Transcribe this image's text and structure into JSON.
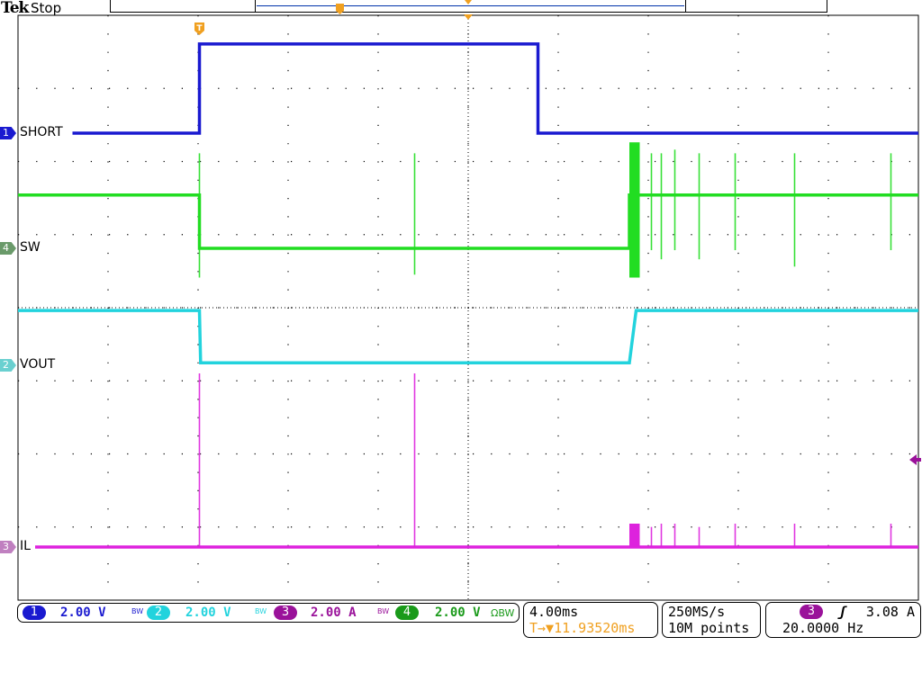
{
  "header": {
    "brand": "Tek",
    "status": "Stop"
  },
  "channels": [
    {
      "num": "1",
      "label": "SHORT",
      "scale": "2.00 V",
      "color": "#1a1ad0",
      "bw": "BW"
    },
    {
      "num": "2",
      "label": "VOUT",
      "scale": "2.00 V",
      "color": "#22d3dd",
      "bw": "BW"
    },
    {
      "num": "3",
      "label": "IL",
      "scale": "2.00 A",
      "color": "#9a129a",
      "bw": "BW"
    },
    {
      "num": "4",
      "label": "SW",
      "scale": "2.00 V",
      "color": "#1a9a1a",
      "bw": "ΩBW"
    }
  ],
  "horizontal": {
    "scale": "4.00ms",
    "position": "11.93520ms",
    "position_prefix": "T→▼",
    "color": "#f0a020"
  },
  "acquisition": {
    "rate": "250MS/s",
    "length": "10M points"
  },
  "trigger": {
    "source": "3",
    "slope": "rising",
    "slope_glyph": "ʃ",
    "level": "3.08 A",
    "frequency": "20.0000 Hz"
  },
  "trigger_marker": "T",
  "chart_data": {
    "type": "line",
    "xlabel": "",
    "ylabel": "",
    "x_unit": "ms",
    "xlim": [
      -8.06,
      31.94
    ],
    "grid": true,
    "divisions": {
      "horizontal": 10,
      "vertical": 8
    },
    "series": [
      {
        "name": "SHORT",
        "channel": "1",
        "color": "#1a1ad0",
        "unit": "V",
        "points": [
          [
            -5.64,
            0
          ],
          [
            0,
            0
          ],
          [
            0,
            2.44
          ],
          [
            15.04,
            2.44
          ],
          [
            15.04,
            0
          ],
          [
            31.94,
            0
          ]
        ],
        "spikes": [],
        "bursts": []
      },
      {
        "name": "SW",
        "channel": "4",
        "color": "#22dd22",
        "unit": "V",
        "points": [
          [
            -8.06,
            1.46
          ],
          [
            0,
            1.46
          ],
          [
            0,
            0
          ],
          [
            19.1,
            0
          ],
          [
            19.1,
            1.46
          ],
          [
            31.94,
            1.46
          ]
        ],
        "spikes": [
          [
            0,
            -0.8,
            2.6
          ],
          [
            9.56,
            -0.72,
            2.6
          ],
          [
            20.08,
            -0.05,
            2.6
          ],
          [
            20.52,
            -0.3,
            2.6
          ],
          [
            21.12,
            -0.05,
            2.7
          ],
          [
            22.2,
            -0.3,
            2.6
          ],
          [
            23.8,
            -0.05,
            2.6
          ],
          [
            26.44,
            -0.5,
            2.6
          ],
          [
            30.72,
            -0.05,
            2.6
          ]
        ],
        "bursts": [
          [
            19.1,
            19.56,
            -0.8,
            2.9
          ]
        ]
      },
      {
        "name": "VOUT",
        "channel": "2",
        "color": "#22d3dd",
        "unit": "V",
        "points": [
          [
            -8.06,
            1.5
          ],
          [
            0,
            1.5
          ],
          [
            0.05,
            0.07
          ],
          [
            19.1,
            0.07
          ],
          [
            19.4,
            1.5
          ],
          [
            31.94,
            1.5
          ]
        ],
        "spikes": [],
        "bursts": []
      },
      {
        "name": "IL",
        "channel": "3",
        "color": "#dd22dd",
        "unit": "A",
        "points": [
          [
            -7.3,
            0
          ],
          [
            31.94,
            0
          ]
        ],
        "spikes": [
          [
            0,
            0,
            4.75
          ],
          [
            9.56,
            0,
            4.75
          ],
          [
            20.08,
            0,
            0.55
          ],
          [
            20.52,
            0,
            0.64
          ],
          [
            21.12,
            0,
            0.64
          ],
          [
            22.2,
            0,
            0.55
          ],
          [
            23.8,
            0,
            0.64
          ],
          [
            26.44,
            0,
            0.64
          ],
          [
            30.72,
            0,
            0.64
          ]
        ],
        "bursts": [
          [
            19.1,
            19.56,
            0,
            0.64
          ]
        ]
      }
    ]
  }
}
